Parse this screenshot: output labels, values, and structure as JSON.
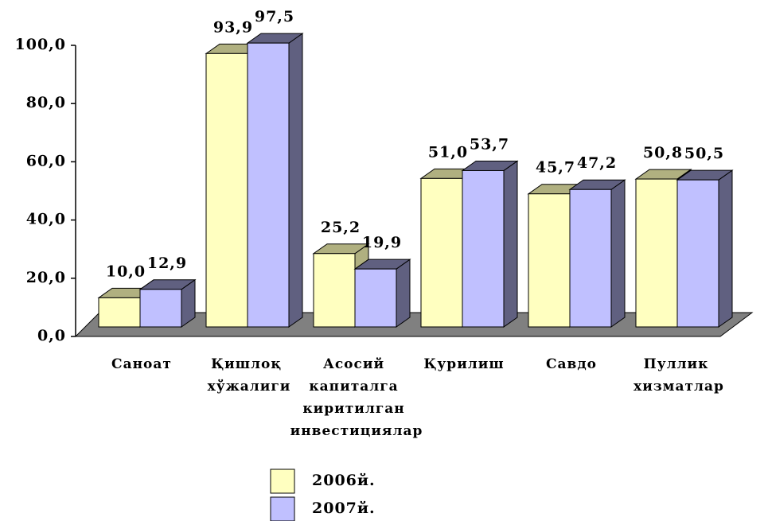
{
  "chart_data": {
    "type": "bar3d",
    "categories": [
      "Саноат",
      "Қишлоқ хўжалиги",
      "Асосий капиталга киритилган инвестициялар",
      "Қурилиш",
      "Савдо",
      "Пуллик хизматлар"
    ],
    "series": [
      {
        "name": "2006й.",
        "color": "#ffffc0",
        "side": "#b0b080",
        "values": [
          10.0,
          93.9,
          25.2,
          51.0,
          45.7,
          50.8
        ],
        "value_labels": [
          "10,0",
          "93,9",
          "25,2",
          "51,0",
          "45,7",
          "50,8"
        ]
      },
      {
        "name": "2007й.",
        "color": "#c0c0ff",
        "side": "#606080",
        "values": [
          12.9,
          97.5,
          19.9,
          53.7,
          47.2,
          50.5
        ],
        "value_labels": [
          "12,9",
          "97,5",
          "19,9",
          "53,7",
          "47,2",
          "50,5"
        ]
      }
    ],
    "ylim": [
      0,
      100
    ],
    "yticks": [
      {
        "value": 0,
        "label": "0,0"
      },
      {
        "value": 20,
        "label": "20,0"
      },
      {
        "value": 40,
        "label": "40,0"
      },
      {
        "value": 60,
        "label": "60,0"
      },
      {
        "value": 80,
        "label": "80,0"
      },
      {
        "value": 100,
        "label": "100,0"
      }
    ],
    "floor_color": "#808080"
  }
}
